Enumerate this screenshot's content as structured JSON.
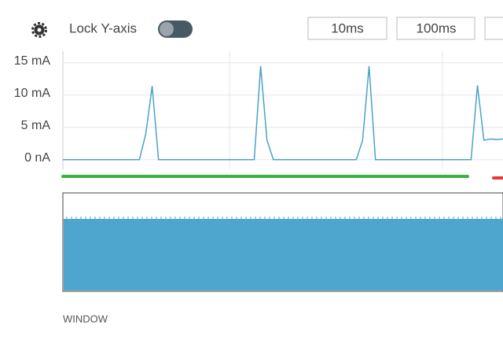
{
  "toolbar": {
    "lock_label": "Lock Y-axis",
    "buttons": [
      "10ms",
      "100ms"
    ]
  },
  "chart_data": {
    "type": "line",
    "ylim": [
      -1.5,
      16.8
    ],
    "yticks": [
      {
        "value": 0,
        "label": "0 nA"
      },
      {
        "value": 5,
        "label": "5 mA"
      },
      {
        "value": 10,
        "label": "10 mA"
      },
      {
        "value": 15,
        "label": "15 mA"
      }
    ],
    "grid": true,
    "series": [
      {
        "color": "#4aa3c8",
        "values": [
          0,
          0,
          0,
          0,
          0,
          0,
          0,
          0,
          0,
          0,
          0,
          0,
          0,
          4,
          11.4,
          0,
          0,
          0,
          0,
          0,
          0,
          0,
          0,
          0,
          0,
          0,
          0,
          0,
          0,
          0,
          0,
          14.5,
          3,
          0,
          0,
          0,
          0,
          0,
          0,
          0,
          0,
          0,
          0,
          0,
          0,
          0,
          0,
          3,
          14.5,
          0,
          0,
          0,
          0,
          0,
          0,
          0,
          0,
          0,
          0,
          0,
          0,
          0,
          0,
          0,
          0,
          11.5,
          3,
          3.2,
          3.1,
          3.2
        ]
      }
    ]
  },
  "window_label": "WINDOW"
}
